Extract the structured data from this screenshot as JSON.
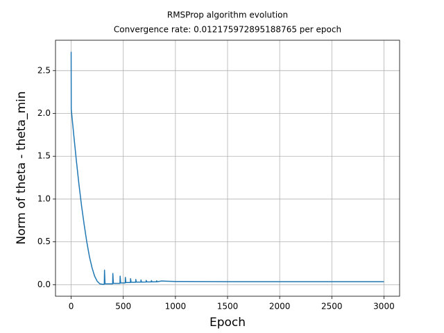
{
  "chart_data": {
    "type": "line",
    "title": "RMSProp algorithm evolution",
    "subtitle": "Convergence rate: 0.012175972895188765 per epoch",
    "x_label": "Epoch",
    "y_label": "Norm of  theta - theta_min",
    "color": "#1f77b4",
    "grid": true,
    "x": [
      0,
      1,
      25,
      50,
      75,
      100,
      125,
      150,
      175,
      200,
      225,
      250,
      275,
      300,
      318,
      320,
      325,
      398,
      400,
      405,
      468,
      470,
      475,
      518,
      520,
      525,
      568,
      570,
      575,
      618,
      620,
      625,
      668,
      670,
      675,
      718,
      720,
      725,
      768,
      770,
      775,
      818,
      820,
      825,
      870,
      920,
      1000,
      1500,
      3000
    ],
    "values": [
      2.72,
      2.05,
      1.75,
      1.45,
      1.17,
      0.92,
      0.7,
      0.5,
      0.33,
      0.2,
      0.1,
      0.04,
      0.01,
      0.005,
      0.005,
      0.17,
      0.01,
      0.01,
      0.13,
      0.015,
      0.015,
      0.1,
      0.02,
      0.02,
      0.085,
      0.025,
      0.025,
      0.07,
      0.028,
      0.028,
      0.06,
      0.03,
      0.03,
      0.055,
      0.03,
      0.031,
      0.05,
      0.032,
      0.032,
      0.048,
      0.033,
      0.033,
      0.045,
      0.034,
      0.043,
      0.04,
      0.037,
      0.035,
      0.035
    ],
    "xlim": [
      -150,
      3150
    ],
    "ylim": [
      -0.135,
      2.855
    ],
    "xticks": [
      0,
      500,
      1000,
      1500,
      2000,
      2500,
      3000
    ],
    "yticks": [
      {
        "value": 0,
        "label": "0.0"
      },
      0.5,
      {
        "value": 1,
        "label": "1.0"
      },
      1.5,
      {
        "value": 2,
        "label": "2.0"
      },
      2.5
    ]
  }
}
